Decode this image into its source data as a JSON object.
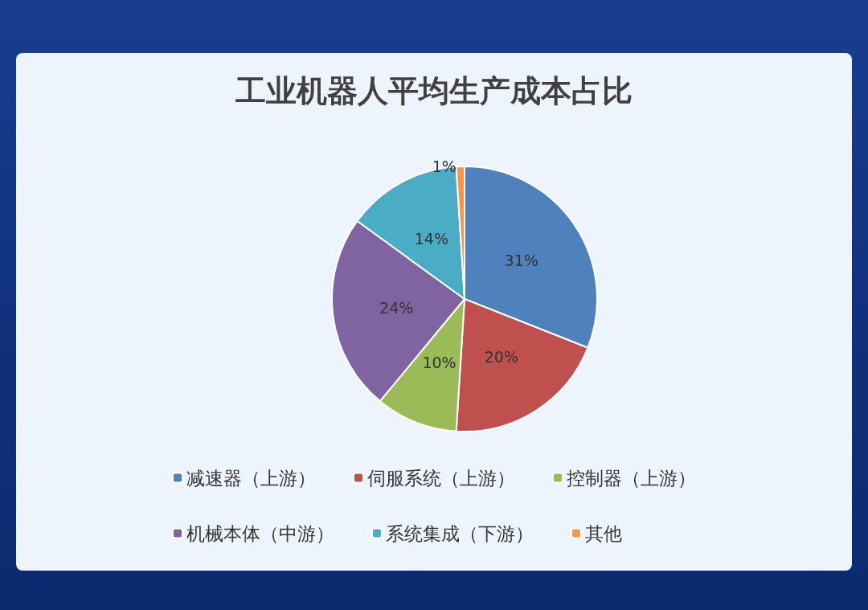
{
  "chart_data": {
    "type": "pie",
    "title": "工业机器人平均生产成本占比",
    "categories": [
      "减速器（上游）",
      "伺服系统（上游）",
      "控制器（上游）",
      "机械本体（中游）",
      "系统集成（下游）",
      "其他"
    ],
    "values": [
      31,
      20,
      10,
      24,
      14,
      1
    ],
    "colors": [
      "#4f81bd",
      "#c0504d",
      "#9bbb59",
      "#8064a2",
      "#4bacc6",
      "#f79646"
    ],
    "value_labels": [
      "31%",
      "20%",
      "10%",
      "24%",
      "14%",
      "1%"
    ],
    "legend": "bottom"
  }
}
